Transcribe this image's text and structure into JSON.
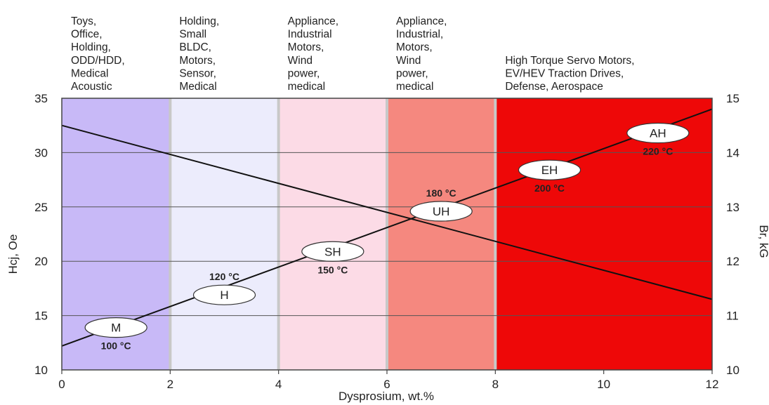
{
  "chart_data": {
    "type": "line",
    "xlabel": "Dysprosium, wt.%",
    "ylabel": "Hcj, Oe",
    "y2label": "Br, kG",
    "xlim": [
      0,
      12
    ],
    "ylim": [
      10,
      35
    ],
    "y2lim": [
      10,
      15
    ],
    "x_ticks": [
      "0",
      "2",
      "4",
      "6",
      "8",
      "10",
      "12"
    ],
    "y_ticks": [
      "10",
      "15",
      "20",
      "25",
      "30",
      "35"
    ],
    "y2_ticks": [
      "10",
      "11",
      "12",
      "13",
      "14",
      "15"
    ],
    "grid": true,
    "series": [
      {
        "axis": "left",
        "x": [
          0,
          12
        ],
        "y": [
          12.2,
          34.0
        ]
      },
      {
        "axis": "right",
        "x": [
          0,
          12
        ],
        "y": [
          14.5,
          11.3
        ]
      }
    ],
    "bands": [
      {
        "x": [
          0,
          2
        ],
        "color": "#c8b9f7",
        "lines": [
          "Toys,",
          "Office,",
          "Holding,",
          "ODD/HDD,",
          "Medical",
          "Acoustic"
        ]
      },
      {
        "x": [
          2,
          4
        ],
        "color": "#ececfc",
        "lines": [
          "Holding,",
          "Small",
          "BLDC,",
          "Motors,",
          "Sensor,",
          "Medical"
        ]
      },
      {
        "x": [
          4,
          6
        ],
        "color": "#fcdbe6",
        "lines": [
          "Appliance,",
          "Industrial",
          "Motors,",
          "Wind",
          "power,",
          "medical"
        ]
      },
      {
        "x": [
          6,
          8
        ],
        "color": "#f5887f",
        "lines": [
          "Appliance,",
          "Industrial,",
          "Motors,",
          "Wind",
          "power,",
          "medical"
        ]
      },
      {
        "x": [
          8,
          12
        ],
        "color": "#ee0808",
        "lines": [
          "High Torque Servo Motors,",
          "EV/HEV Traction Drives,",
          "Defense, Aerospace"
        ]
      }
    ],
    "grades": [
      {
        "name": "M",
        "x": 1.0,
        "y": 13.9,
        "temp": "100 °C",
        "temp_side": "below"
      },
      {
        "name": "H",
        "x": 3.0,
        "y": 16.9,
        "temp": "120 °C",
        "temp_side": "above"
      },
      {
        "name": "SH",
        "x": 5.0,
        "y": 20.9,
        "temp": "150 °C",
        "temp_side": "below"
      },
      {
        "name": "UH",
        "x": 7.0,
        "y": 24.6,
        "temp": "180 °C",
        "temp_side": "above"
      },
      {
        "name": "EH",
        "x": 9.0,
        "y": 28.4,
        "temp": "200 °C",
        "temp_side": "below"
      },
      {
        "name": "AH",
        "x": 11.0,
        "y": 31.8,
        "temp": "220 °C",
        "temp_side": "below"
      }
    ]
  }
}
